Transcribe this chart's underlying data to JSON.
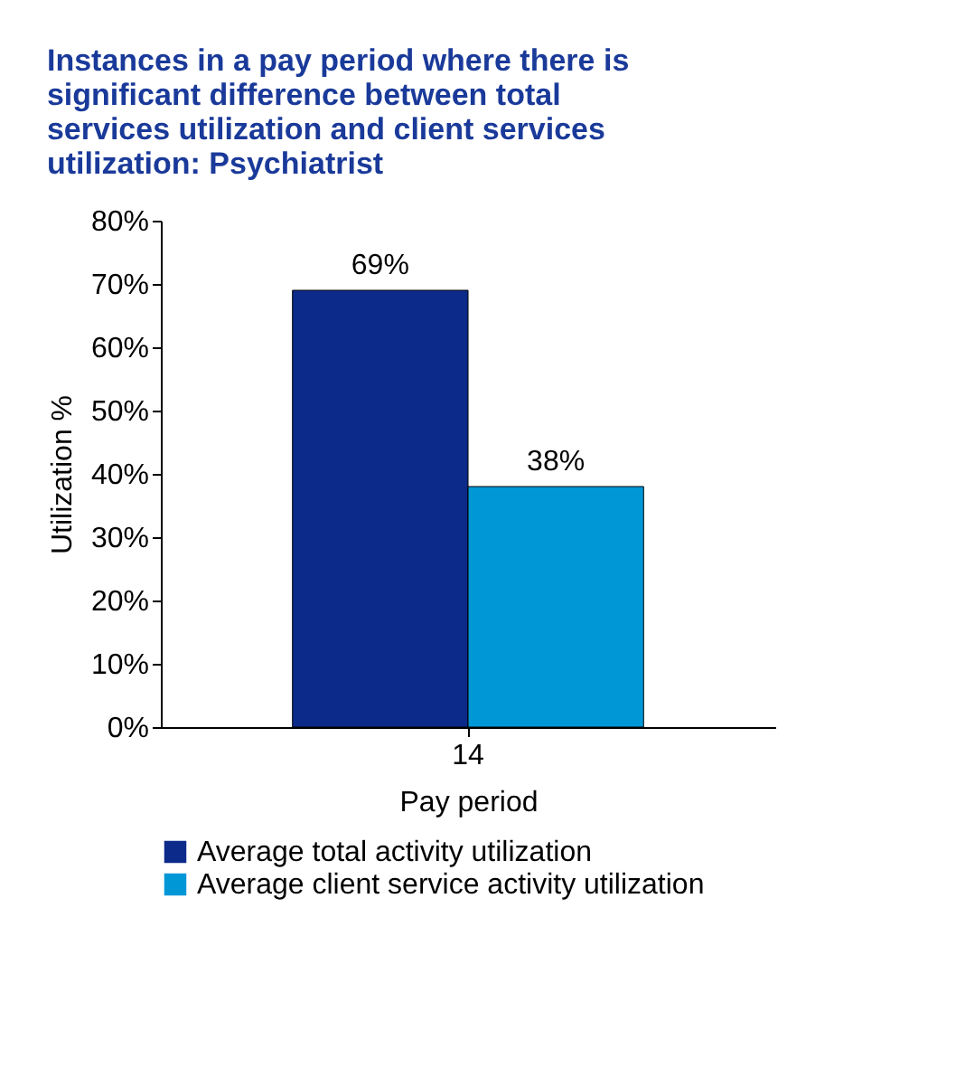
{
  "chart_data": {
    "type": "bar",
    "title": "Instances in a pay period where there is significant difference between total services utilization and client services utilization: Psychiatrist",
    "xlabel": "Pay period",
    "ylabel": "Utilization %",
    "categories": [
      "14"
    ],
    "series": [
      {
        "name": "Average total activity utilization",
        "color": "#0b2a8a",
        "values": [
          69
        ],
        "value_labels": [
          "69%"
        ]
      },
      {
        "name": "Average client service activity utilization",
        "color": "#0097d7",
        "values": [
          38
        ],
        "value_labels": [
          "38%"
        ]
      }
    ],
    "ylim": [
      0,
      80
    ],
    "yticks": [
      {
        "value": 0,
        "label": "0%"
      },
      {
        "value": 10,
        "label": "10%"
      },
      {
        "value": 20,
        "label": "20%"
      },
      {
        "value": 30,
        "label": "30%"
      },
      {
        "value": 40,
        "label": "40%"
      },
      {
        "value": 50,
        "label": "50%"
      },
      {
        "value": 60,
        "label": "60%"
      },
      {
        "value": 70,
        "label": "70%"
      },
      {
        "value": 80,
        "label": "80%"
      }
    ],
    "grid": false,
    "legend": "bottom"
  }
}
